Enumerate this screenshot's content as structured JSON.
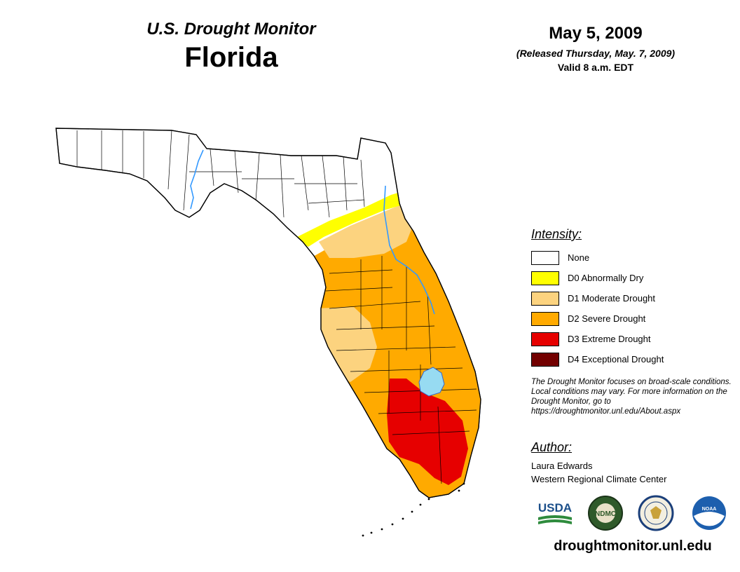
{
  "header": {
    "product_name": "U.S. Drought Monitor",
    "region": "Florida",
    "map_date": "May 5, 2009",
    "release": "(Released Thursday, May. 7, 2009)",
    "valid": "Valid 8 a.m. EDT"
  },
  "legend": {
    "heading": "Intensity:",
    "items": [
      {
        "label": "None",
        "color": "#ffffff"
      },
      {
        "label": "D0 Abnormally Dry",
        "color": "#ffff00"
      },
      {
        "label": "D1 Moderate Drought",
        "color": "#fcd37f"
      },
      {
        "label": "D2 Severe Drought",
        "color": "#ffaa00"
      },
      {
        "label": "D3 Extreme Drought",
        "color": "#e60000"
      },
      {
        "label": "D4 Exceptional Drought",
        "color": "#730000"
      }
    ]
  },
  "note": "The Drought Monitor focuses on broad-scale conditions. Local conditions may vary. For more information on the Drought Monitor, go to https://droughtmonitor.unl.edu/About.aspx",
  "author": {
    "heading": "Author:",
    "name": "Laura Edwards",
    "org": "Western Regional Climate Center"
  },
  "logos": {
    "usda": "USDA",
    "ndmc": "NDMC",
    "noaa": "NOAA"
  },
  "website": "droughtmonitor.unl.edu",
  "colors": {
    "water": "#97dbf2",
    "river": "#3399ff",
    "county_line": "#000000"
  }
}
